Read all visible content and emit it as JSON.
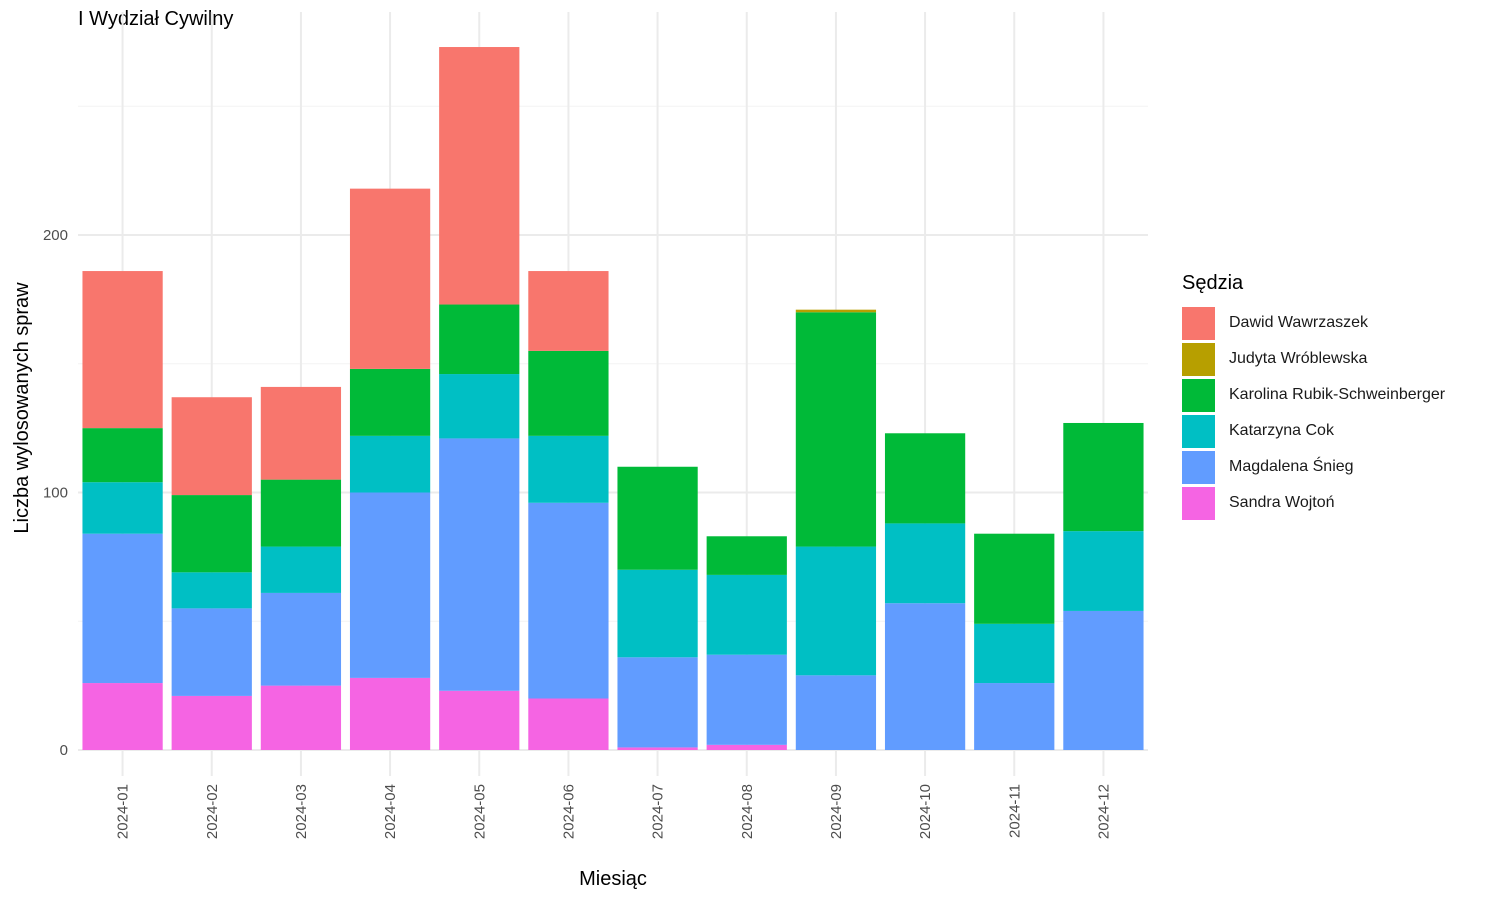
{
  "chart_data": {
    "type": "bar",
    "stacked": true,
    "title": "I Wydział Cywilny",
    "xlabel": "Miesiąc",
    "ylabel": "Liczba wylosowanych spraw",
    "ylim": [
      0,
      280
    ],
    "yticks": [
      0,
      100,
      200
    ],
    "grid": true,
    "legend_title": "Sędzia",
    "legend_position": "right",
    "categories": [
      "2024-01",
      "2024-02",
      "2024-03",
      "2024-04",
      "2024-05",
      "2024-06",
      "2024-07",
      "2024-08",
      "2024-09",
      "2024-10",
      "2024-11",
      "2024-12"
    ],
    "series": [
      {
        "name": "Sandra Wojtoń",
        "color": "#F564E3",
        "values": [
          26,
          21,
          25,
          28,
          23,
          20,
          1,
          2,
          0,
          0,
          0,
          0
        ]
      },
      {
        "name": "Magdalena Śnieg",
        "color": "#619CFF",
        "values": [
          58,
          34,
          36,
          72,
          98,
          76,
          35,
          35,
          29,
          57,
          26,
          54
        ]
      },
      {
        "name": "Katarzyna Cok",
        "color": "#00BFC4",
        "values": [
          20,
          14,
          18,
          22,
          25,
          26,
          34,
          31,
          50,
          31,
          23,
          31
        ]
      },
      {
        "name": "Karolina Rubik-Schweinberger",
        "color": "#00BA38",
        "values": [
          21,
          30,
          26,
          26,
          27,
          33,
          40,
          15,
          91,
          35,
          35,
          42
        ]
      },
      {
        "name": "Judyta Wróblewska",
        "color": "#B79F00",
        "values": [
          0,
          0,
          0,
          0,
          0,
          0,
          0,
          0,
          1,
          0,
          0,
          0
        ]
      },
      {
        "name": "Dawid Wawrzaszek",
        "color": "#F8766D",
        "values": [
          61,
          38,
          36,
          70,
          100,
          31,
          0,
          0,
          0,
          0,
          0,
          0
        ]
      }
    ],
    "legend_order": [
      "Dawid Wawrzaszek",
      "Judyta Wróblewska",
      "Karolina Rubik-Schweinberger",
      "Katarzyna Cok",
      "Magdalena Śnieg",
      "Sandra Wojtoń"
    ]
  }
}
